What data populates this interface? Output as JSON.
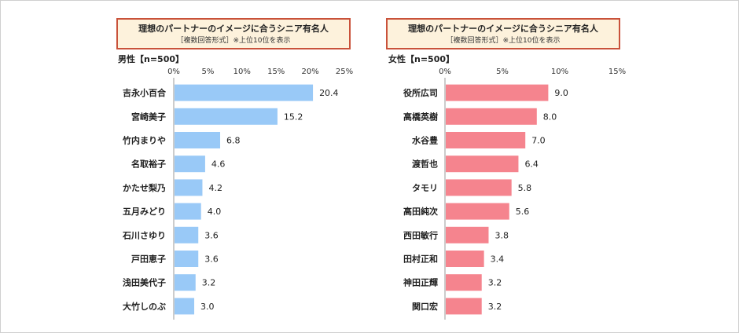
{
  "chart_data": [
    {
      "type": "bar",
      "orientation": "horizontal",
      "title": "理想のパートナーのイメージに合うシニア有名人",
      "subtitle": "［複数回答形式］※上位10位を表示",
      "sample": "男性【n=500】",
      "xlim": [
        0,
        25
      ],
      "ticks": [
        "0%",
        "5%",
        "10%",
        "15%",
        "20%",
        "25%"
      ],
      "tick_values": [
        0,
        5,
        10,
        15,
        20,
        25
      ],
      "bar_color": "#99c9f7",
      "categories": [
        "吉永小百合",
        "宮崎美子",
        "竹内まりや",
        "名取裕子",
        "かたせ梨乃",
        "五月みどり",
        "石川さゆり",
        "戸田恵子",
        "浅田美代子",
        "大竹しのぶ"
      ],
      "values": [
        20.4,
        15.2,
        6.8,
        4.6,
        4.2,
        4.0,
        3.6,
        3.6,
        3.2,
        3.0
      ],
      "value_labels": [
        "20.4",
        "15.2",
        "6.8",
        "4.6",
        "4.2",
        "4.0",
        "3.6",
        "3.6",
        "3.2",
        "3.0"
      ]
    },
    {
      "type": "bar",
      "orientation": "horizontal",
      "title": "理想のパートナーのイメージに合うシニア有名人",
      "subtitle": "［複数回答形式］※上位10位を表示",
      "sample": "女性【n=500】",
      "xlim": [
        0,
        15
      ],
      "ticks": [
        "0%",
        "5%",
        "10%",
        "15%"
      ],
      "tick_values": [
        0,
        5,
        10,
        15
      ],
      "bar_color": "#f5848e",
      "categories": [
        "役所広司",
        "高橋英樹",
        "水谷豊",
        "渡哲也",
        "タモリ",
        "高田純次",
        "西田敏行",
        "田村正和",
        "神田正輝",
        "関口宏"
      ],
      "values": [
        9.0,
        8.0,
        7.0,
        6.4,
        5.8,
        5.6,
        3.8,
        3.4,
        3.2,
        3.2
      ],
      "value_labels": [
        "9.0",
        "8.0",
        "7.0",
        "6.4",
        "5.8",
        "5.6",
        "3.8",
        "3.4",
        "3.2",
        "3.2"
      ]
    }
  ]
}
